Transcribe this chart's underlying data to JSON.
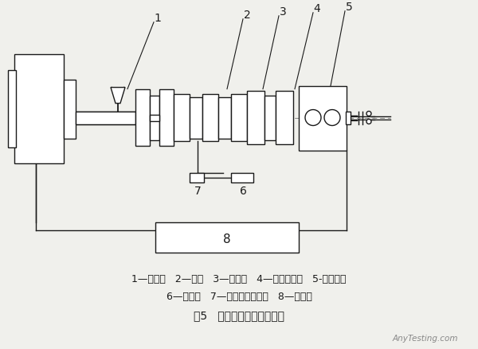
{
  "background_color": "#f0f0ec",
  "line_color": "#1a1a1a",
  "title": "图5   精密挤出生产线示意图",
  "legend_line1": "1—挤出机   2—机头   3—冷却槽   4—在线测径仪   5-牵引装置",
  "legend_line2": "6—气源箱   7—气体流量控制器   8—控制器",
  "watermark": "AnyTesting.com",
  "font_size_caption": 10,
  "font_size_legend": 9,
  "font_size_label": 10
}
